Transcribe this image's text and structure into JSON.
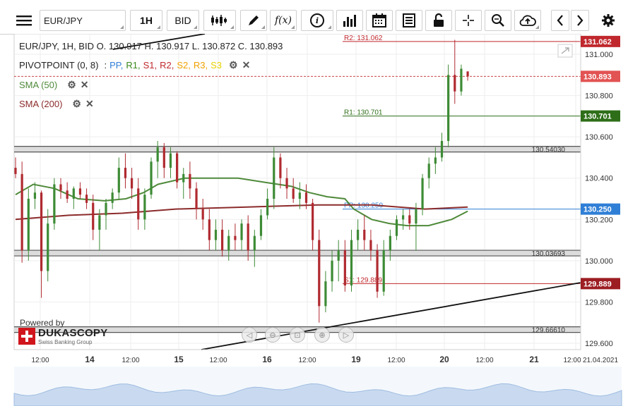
{
  "toolbar": {
    "menu_icon": "hamburger-menu-icon",
    "instrument": "EUR/JPY",
    "period": "1H",
    "side": "BID",
    "icons": [
      "candlestick-type-icon",
      "pencil-draw-icon",
      "function-fx-icon",
      "info-icon",
      "bar-chart-icon",
      "calendar-icon",
      "report-icon",
      "lock-open-icon",
      "crosshair-icon",
      "zoom-icon",
      "cloud-upload-icon",
      "chevron-left-icon",
      "chevron-right-icon",
      "gear-icon"
    ],
    "fx_label": "f(x)",
    "info_label": "i"
  },
  "header": {
    "ohlc": "EUR/JPY, 1H, BID   O. 130.917 H. 130.917 L. 130.872 C. 130.893",
    "pivot_label": "PIVOTPOINT (0, 8)",
    "pivot_legend": [
      {
        "name": "PP",
        "color": "#2f7fd6"
      },
      {
        "name": "R1",
        "color": "#3a8a1e"
      },
      {
        "name": "S1",
        "color": "#c0282d"
      },
      {
        "name": "R2",
        "color": "#c0282d"
      },
      {
        "name": "S2",
        "color": "#f0a000"
      },
      {
        "name": "R3",
        "color": "#f0a000"
      },
      {
        "name": "S3",
        "color": "#e6d000"
      }
    ],
    "sma50_label": "SMA (50)",
    "sma200_label": "SMA (200)"
  },
  "branding": {
    "powered_by": "Powered by",
    "logo_text": "DUKASCOPY",
    "logo_sub": "Swiss Banking Group"
  },
  "chart_data": {
    "type": "candlestick",
    "instrument": "EUR/JPY",
    "timeframe": "1H",
    "ylim": [
      129.6,
      131.1
    ],
    "y_ticks": [
      129.6,
      129.8,
      130.0,
      130.2,
      130.4,
      130.6,
      130.8,
      131.0
    ],
    "y_tick_labels": [
      "129.600",
      "129.800",
      "130.000",
      "130.200",
      "130.400",
      "130.600",
      "130.800",
      "131.000"
    ],
    "x_tick_labels": [
      "12:00",
      "14",
      "12:00",
      "15",
      "12:00",
      "16",
      "12:00",
      "19",
      "12:00",
      "20",
      "12:00",
      "21",
      "12:00",
      "21.04.2021"
    ],
    "last_price": 130.893,
    "last_price_label": "130.893",
    "pivots": [
      {
        "name": "R2",
        "value": 131.062,
        "label": "R2: 131.062",
        "badge": "131.062",
        "color": "#c0282d"
      },
      {
        "name": "R1",
        "value": 130.701,
        "label": "R1: 130.701",
        "badge": "130.701",
        "color": "#2e6e18"
      },
      {
        "name": "PP",
        "value": 130.25,
        "label": "PP: 130.250",
        "badge": "130.250",
        "color": "#2f7fd6"
      },
      {
        "name": "S1",
        "value": 129.889,
        "label": "S1: 129.889",
        "badge": "129.889",
        "color": "#c0282d"
      }
    ],
    "horizontal_lines": [
      {
        "value": 130.5403,
        "label": "130.54030"
      },
      {
        "value": 130.03693,
        "label": "130.03693"
      },
      {
        "value": 129.6661,
        "label": "129.66610"
      }
    ],
    "sma50": {
      "name": "SMA (50)",
      "color": "#4f8a3a",
      "values": [
        [
          0,
          130.32
        ],
        [
          10,
          130.37
        ],
        [
          22,
          130.35
        ],
        [
          35,
          130.3
        ],
        [
          50,
          130.29
        ],
        [
          62,
          130.3
        ],
        [
          72,
          130.33
        ],
        [
          80,
          130.37
        ],
        [
          95,
          130.4
        ],
        [
          110,
          130.4
        ],
        [
          125,
          130.4
        ],
        [
          140,
          130.38
        ],
        [
          155,
          130.36
        ],
        [
          165,
          130.33
        ],
        [
          175,
          130.31
        ],
        [
          185,
          130.3
        ],
        [
          190,
          130.25
        ],
        [
          200,
          130.2
        ],
        [
          210,
          130.18
        ],
        [
          220,
          130.17
        ],
        [
          232,
          130.17
        ],
        [
          245,
          130.2
        ],
        [
          254,
          130.24
        ]
      ]
    },
    "sma200": {
      "name": "SMA (200)",
      "color": "#8c2b2b",
      "values": [
        [
          0,
          130.2
        ],
        [
          30,
          130.22
        ],
        [
          60,
          130.23
        ],
        [
          90,
          130.25
        ],
        [
          130,
          130.26
        ],
        [
          170,
          130.27
        ],
        [
          200,
          130.27
        ],
        [
          230,
          130.25
        ],
        [
          254,
          130.26
        ]
      ]
    },
    "candles": [
      {
        "o": 130.45,
        "h": 130.5,
        "l": 130.4,
        "c": 130.42
      },
      {
        "o": 130.42,
        "h": 130.48,
        "l": 129.99,
        "c": 130.05
      },
      {
        "o": 130.05,
        "h": 130.35,
        "l": 130.0,
        "c": 130.3
      },
      {
        "o": 130.3,
        "h": 130.38,
        "l": 130.25,
        "c": 130.33
      },
      {
        "o": 130.33,
        "h": 130.34,
        "l": 129.82,
        "c": 129.95
      },
      {
        "o": 129.95,
        "h": 130.25,
        "l": 129.9,
        "c": 130.18
      },
      {
        "o": 130.18,
        "h": 130.4,
        "l": 130.15,
        "c": 130.37
      },
      {
        "o": 130.37,
        "h": 130.4,
        "l": 130.3,
        "c": 130.34
      },
      {
        "o": 130.34,
        "h": 130.38,
        "l": 130.28,
        "c": 130.3
      },
      {
        "o": 130.3,
        "h": 130.36,
        "l": 130.25,
        "c": 130.35
      },
      {
        "o": 130.35,
        "h": 130.38,
        "l": 130.3,
        "c": 130.32
      },
      {
        "o": 130.32,
        "h": 130.35,
        "l": 130.25,
        "c": 130.28
      },
      {
        "o": 130.28,
        "h": 130.32,
        "l": 130.1,
        "c": 130.15
      },
      {
        "o": 130.15,
        "h": 130.25,
        "l": 130.05,
        "c": 130.22
      },
      {
        "o": 130.22,
        "h": 130.3,
        "l": 130.15,
        "c": 130.28
      },
      {
        "o": 130.28,
        "h": 130.35,
        "l": 130.25,
        "c": 130.33
      },
      {
        "o": 130.33,
        "h": 130.5,
        "l": 130.3,
        "c": 130.45
      },
      {
        "o": 130.45,
        "h": 130.52,
        "l": 130.35,
        "c": 130.4
      },
      {
        "o": 130.4,
        "h": 130.45,
        "l": 130.3,
        "c": 130.35
      },
      {
        "o": 130.35,
        "h": 130.4,
        "l": 130.15,
        "c": 130.2
      },
      {
        "o": 130.2,
        "h": 130.35,
        "l": 130.15,
        "c": 130.32
      },
      {
        "o": 130.32,
        "h": 130.5,
        "l": 130.3,
        "c": 130.48
      },
      {
        "o": 130.48,
        "h": 130.58,
        "l": 130.4,
        "c": 130.55
      },
      {
        "o": 130.55,
        "h": 130.57,
        "l": 130.4,
        "c": 130.45
      },
      {
        "o": 130.45,
        "h": 130.55,
        "l": 130.4,
        "c": 130.52
      },
      {
        "o": 130.52,
        "h": 130.53,
        "l": 130.35,
        "c": 130.38
      },
      {
        "o": 130.38,
        "h": 130.45,
        "l": 130.3,
        "c": 130.42
      },
      {
        "o": 130.42,
        "h": 130.48,
        "l": 130.3,
        "c": 130.35
      },
      {
        "o": 130.35,
        "h": 130.38,
        "l": 130.2,
        "c": 130.25
      },
      {
        "o": 130.25,
        "h": 130.3,
        "l": 130.15,
        "c": 130.2
      },
      {
        "o": 130.2,
        "h": 130.25,
        "l": 130.05,
        "c": 130.1
      },
      {
        "o": 130.1,
        "h": 130.2,
        "l": 130.05,
        "c": 130.15
      },
      {
        "o": 130.15,
        "h": 130.2,
        "l": 130.02,
        "c": 130.05
      },
      {
        "o": 130.05,
        "h": 130.15,
        "l": 130.0,
        "c": 130.12
      },
      {
        "o": 130.12,
        "h": 130.18,
        "l": 130.05,
        "c": 130.1
      },
      {
        "o": 130.1,
        "h": 130.2,
        "l": 130.05,
        "c": 130.18
      },
      {
        "o": 130.18,
        "h": 130.22,
        "l": 130.0,
        "c": 130.05
      },
      {
        "o": 130.05,
        "h": 130.15,
        "l": 129.97,
        "c": 130.12
      },
      {
        "o": 130.12,
        "h": 130.25,
        "l": 130.1,
        "c": 130.22
      },
      {
        "o": 130.22,
        "h": 130.35,
        "l": 130.2,
        "c": 130.3
      },
      {
        "o": 130.3,
        "h": 130.55,
        "l": 130.25,
        "c": 130.5
      },
      {
        "o": 130.5,
        "h": 130.52,
        "l": 130.35,
        "c": 130.4
      },
      {
        "o": 130.4,
        "h": 130.45,
        "l": 130.3,
        "c": 130.35
      },
      {
        "o": 130.35,
        "h": 130.4,
        "l": 130.28,
        "c": 130.3
      },
      {
        "o": 130.3,
        "h": 130.38,
        "l": 130.25,
        "c": 130.33
      },
      {
        "o": 130.33,
        "h": 130.37,
        "l": 130.25,
        "c": 130.28
      },
      {
        "o": 130.28,
        "h": 130.3,
        "l": 130.05,
        "c": 130.1
      },
      {
        "o": 130.1,
        "h": 130.15,
        "l": 129.7,
        "c": 129.78
      },
      {
        "o": 129.78,
        "h": 129.95,
        "l": 129.75,
        "c": 129.9
      },
      {
        "o": 129.9,
        "h": 130.05,
        "l": 129.85,
        "c": 130.0
      },
      {
        "o": 130.0,
        "h": 130.1,
        "l": 129.9,
        "c": 130.05
      },
      {
        "o": 130.05,
        "h": 130.1,
        "l": 129.85,
        "c": 129.88
      },
      {
        "o": 129.88,
        "h": 130.15,
        "l": 129.85,
        "c": 130.1
      },
      {
        "o": 130.1,
        "h": 130.2,
        "l": 130.05,
        "c": 130.15
      },
      {
        "o": 130.15,
        "h": 130.22,
        "l": 130.05,
        "c": 130.1
      },
      {
        "o": 130.1,
        "h": 130.15,
        "l": 130.0,
        "c": 130.05
      },
      {
        "o": 130.05,
        "h": 130.08,
        "l": 129.82,
        "c": 129.85
      },
      {
        "o": 129.85,
        "h": 130.1,
        "l": 129.83,
        "c": 130.05
      },
      {
        "o": 130.05,
        "h": 130.15,
        "l": 130.0,
        "c": 130.12
      },
      {
        "o": 130.12,
        "h": 130.22,
        "l": 130.1,
        "c": 130.2
      },
      {
        "o": 130.2,
        "h": 130.25,
        "l": 130.15,
        "c": 130.22
      },
      {
        "o": 130.22,
        "h": 130.25,
        "l": 130.15,
        "c": 130.18
      },
      {
        "o": 130.18,
        "h": 130.28,
        "l": 130.05,
        "c": 130.25
      },
      {
        "o": 130.25,
        "h": 130.42,
        "l": 130.22,
        "c": 130.4
      },
      {
        "o": 130.4,
        "h": 130.5,
        "l": 130.35,
        "c": 130.47
      },
      {
        "o": 130.47,
        "h": 130.55,
        "l": 130.42,
        "c": 130.5
      },
      {
        "o": 130.5,
        "h": 130.62,
        "l": 130.48,
        "c": 130.58
      },
      {
        "o": 130.58,
        "h": 130.95,
        "l": 130.55,
        "c": 130.9
      },
      {
        "o": 130.9,
        "h": 131.07,
        "l": 130.76,
        "c": 130.82
      },
      {
        "o": 130.82,
        "h": 130.95,
        "l": 130.8,
        "c": 130.93
      },
      {
        "o": 130.917,
        "h": 130.917,
        "l": 130.872,
        "c": 130.893
      }
    ]
  },
  "overview": {
    "label": "navigator"
  }
}
